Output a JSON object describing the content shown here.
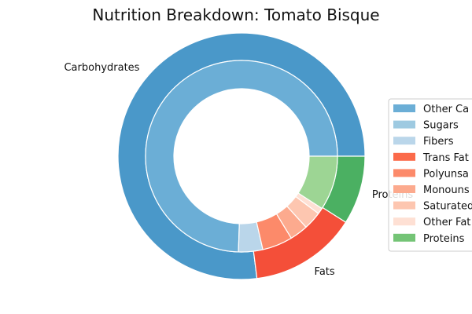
{
  "chart_data": {
    "type": "pie",
    "title": "Nutrition Breakdown:  Tomato Bisque",
    "outer_ring": {
      "categories": [
        "Carbohydrates",
        "Fats",
        "Proteins"
      ],
      "values": [
        77,
        14,
        9
      ],
      "colors": [
        "#4a98c9",
        "#f44f39",
        "#4bb062"
      ]
    },
    "inner_ring": {
      "categories": [
        "Other Carbohydrates",
        "Sugars",
        "Fibers",
        "Trans Fats",
        "Polyunsaturated Fats",
        "Monounsaturated Fats",
        "Saturated Fats",
        "Other Fats",
        "Proteins"
      ],
      "values": [
        73,
        0,
        4,
        0,
        5,
        3,
        3,
        1,
        9
      ],
      "colors": [
        "#6baed6",
        "#9ecae1",
        "#bad6ea",
        "#fb6a4a",
        "#fc8a6a",
        "#fcaa8e",
        "#fdc6b0",
        "#fee0d4",
        "#9dd594"
      ]
    },
    "legend": {
      "placement": "right",
      "entries": [
        "Other Ca",
        "Sugars",
        "Fibers",
        "Trans Fat",
        "Polyunsa",
        "Monouns",
        "Saturated",
        "Other Fat",
        "Proteins"
      ],
      "colors": [
        "#6baed6",
        "#9ecae1",
        "#bad6ea",
        "#fb6a4a",
        "#fc8a6a",
        "#fcaa8e",
        "#fdc6b0",
        "#fee0d4",
        "#74c476"
      ]
    }
  }
}
